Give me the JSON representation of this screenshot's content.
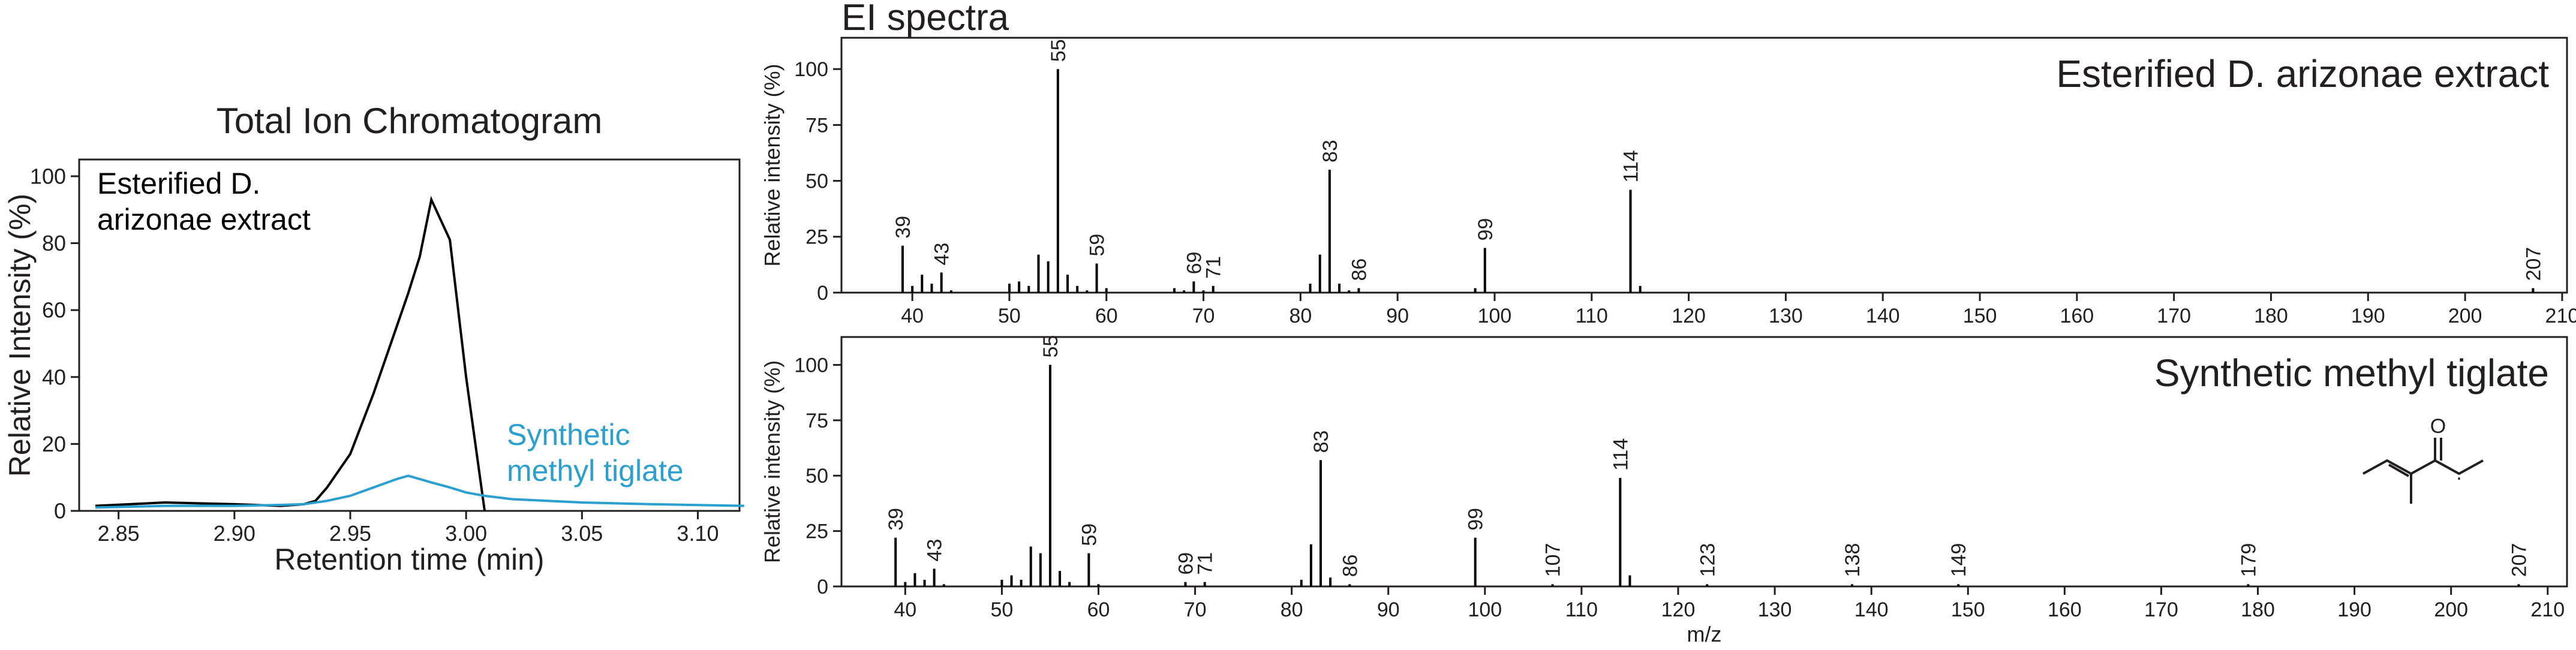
{
  "title": "EI spectra",
  "chart_data": [
    {
      "type": "line",
      "title": "Total Ion Chromatogram",
      "xlabel": "Retention time (min)",
      "ylabel": "Relative Intensity (%)",
      "x": [
        2.84,
        2.87,
        2.9,
        2.92,
        2.93,
        2.935,
        2.94,
        2.95,
        2.96,
        2.97,
        2.975,
        2.98,
        2.985,
        2.993,
        3.0,
        3.008,
        3.02,
        3.05,
        3.08,
        3.12
      ],
      "series": [
        {
          "name": "Esterified D. arizonae extract",
          "color": "#000000",
          "values": [
            1.5,
            2.5,
            2,
            1.5,
            2,
            3,
            7,
            17,
            35,
            55,
            65,
            76,
            93,
            81,
            40,
            0,
            null,
            null,
            null,
            null
          ]
        },
        {
          "name": "Synthetic methyl tiglate",
          "color": "#2a9fd0",
          "values": [
            1,
            1.5,
            1.5,
            1.8,
            2,
            2.5,
            3,
            4.5,
            7,
            9.5,
            10.5,
            9.5,
            8.5,
            7,
            5.5,
            4.5,
            3.5,
            2.5,
            2,
            1.5
          ]
        }
      ],
      "xlim": [
        2.833,
        3.118
      ],
      "ylim": [
        0,
        105
      ],
      "xticks": [
        2.85,
        {
          "value": 2.9,
          "label": "2.90"
        },
        2.95,
        {
          "value": 3,
          "label": "3.00"
        },
        3.05,
        {
          "value": 3.1,
          "label": "3.10"
        }
      ],
      "yticks": [
        0,
        20,
        40,
        60,
        80,
        100
      ]
    },
    {
      "type": "stem",
      "title": "Esterified D. arizonae extract",
      "ylabel": "Relative intensity (%)",
      "color": "#000000",
      "x": [
        39,
        40,
        41,
        42,
        43,
        44,
        50,
        51,
        52,
        53,
        54,
        55,
        56,
        57,
        58,
        59,
        60,
        67,
        68,
        69,
        70,
        71,
        81,
        82,
        83,
        84,
        85,
        86,
        98,
        99,
        114,
        115,
        207
      ],
      "values": [
        21,
        3,
        8,
        4,
        9,
        1,
        4,
        5,
        3,
        17,
        14,
        100,
        8,
        3,
        1,
        13,
        2,
        2,
        1,
        5,
        1,
        3,
        4,
        17,
        55,
        4,
        1,
        2,
        2,
        20,
        46,
        3,
        2
      ],
      "peak_labels": [
        39,
        43,
        55,
        59,
        69,
        71,
        83,
        86,
        99,
        114,
        207
      ],
      "xlim": [
        32.7,
        210.5
      ],
      "ylim": [
        0,
        114
      ],
      "xticks": [
        40,
        50,
        60,
        70,
        80,
        90,
        100,
        110,
        120,
        130,
        140,
        150,
        160,
        170,
        180,
        190,
        200,
        210
      ],
      "yticks": [
        0,
        25,
        50,
        75,
        100
      ]
    },
    {
      "type": "stem",
      "title": "Synthetic methyl tiglate",
      "ylabel": "Relative intensity (%)",
      "xlabel": "m/z",
      "color": "#000000",
      "x": [
        39,
        40,
        41,
        42,
        43,
        44,
        50,
        51,
        52,
        53,
        54,
        55,
        56,
        57,
        59,
        60,
        69,
        71,
        81,
        82,
        83,
        84,
        86,
        99,
        107,
        114,
        115,
        123,
        138,
        149,
        179,
        207
      ],
      "values": [
        22,
        2,
        6,
        3,
        8,
        1,
        3,
        5,
        3,
        18,
        15,
        100,
        7,
        2,
        15,
        1,
        2,
        2,
        3,
        19,
        57,
        4,
        1,
        22,
        1,
        49,
        5,
        1,
        1,
        1,
        1,
        1
      ],
      "peak_labels": [
        39,
        43,
        55,
        59,
        69,
        71,
        83,
        86,
        99,
        107,
        114,
        123,
        138,
        149,
        179,
        207
      ],
      "xlim": [
        33.4,
        212
      ],
      "ylim": [
        0,
        112.6
      ],
      "xticks": [
        40,
        50,
        60,
        70,
        80,
        90,
        100,
        110,
        120,
        130,
        140,
        150,
        160,
        170,
        180,
        190,
        200,
        210
      ],
      "yticks": [
        0,
        25,
        50,
        75,
        100
      ]
    }
  ]
}
